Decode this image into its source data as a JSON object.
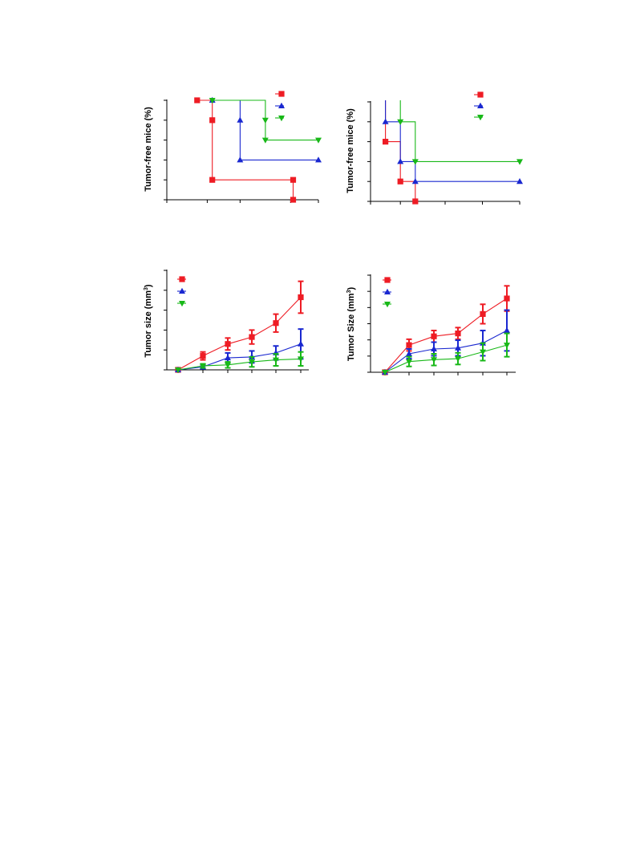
{
  "chart_data": [
    {
      "type": "line",
      "subtype": "kaplan-meier-step",
      "ylabel": "Tumor-free mice (%)",
      "xlabel": "",
      "xlim": [
        0,
        6
      ],
      "ylim": [
        0,
        100
      ],
      "legend_placement": "top-right",
      "series": [
        {
          "color": "#ee1c24",
          "marker": "square",
          "x": [
            1.2,
            1.8,
            1.8,
            5.0,
            5.0
          ],
          "y": [
            100,
            80,
            20,
            20,
            0
          ]
        },
        {
          "color": "#1a28d0",
          "marker": "triangle-up",
          "x": [
            1.8,
            2.9,
            2.9,
            6.0
          ],
          "y": [
            100,
            80,
            40,
            40
          ]
        },
        {
          "color": "#18b818",
          "marker": "triangle-down",
          "x": [
            1.8,
            3.9,
            3.9,
            6.0
          ],
          "y": [
            100,
            80,
            60,
            60
          ]
        }
      ]
    },
    {
      "type": "line",
      "subtype": "kaplan-meier-step",
      "ylabel": "Tumor-free mice (%)",
      "xlabel": "",
      "xlim": [
        0,
        6
      ],
      "ylim": [
        0,
        100
      ],
      "legend_placement": "top-right",
      "series": [
        {
          "color": "#ee1c24",
          "marker": "square",
          "x": [
            0.6,
            1.2,
            1.8
          ],
          "y": [
            60,
            20,
            0
          ]
        },
        {
          "color": "#1a28d0",
          "marker": "triangle-up",
          "x": [
            0.6,
            1.2,
            1.8,
            6.0
          ],
          "y": [
            80,
            40,
            20,
            20
          ]
        },
        {
          "color": "#18b818",
          "marker": "triangle-down",
          "x": [
            1.2,
            1.8,
            6.0
          ],
          "y": [
            80,
            40,
            40
          ]
        }
      ]
    },
    {
      "type": "line",
      "subtype": "error-bar",
      "ylabel": "Tumor size (mm",
      "ylabel_sup": "3",
      "ylabel_end": ")",
      "xlabel": "",
      "x": [
        0,
        1,
        2,
        3,
        4,
        5
      ],
      "ylim": [
        0,
        100
      ],
      "legend_placement": "top-left",
      "series": [
        {
          "color": "#ee1c24",
          "marker": "square",
          "values": [
            0,
            14,
            26,
            33,
            47,
            73
          ],
          "errors": [
            0,
            4,
            6,
            7,
            9,
            16
          ]
        },
        {
          "color": "#1a28d0",
          "marker": "triangle-up",
          "values": [
            0,
            3,
            12,
            13,
            17,
            26
          ],
          "errors": [
            0,
            2,
            5,
            6,
            7,
            15
          ]
        },
        {
          "color": "#18b818",
          "marker": "triangle-down",
          "values": [
            0,
            4,
            5,
            8,
            10,
            11
          ],
          "errors": [
            0,
            2,
            3,
            5,
            6,
            7
          ]
        }
      ]
    },
    {
      "type": "line",
      "subtype": "error-bar",
      "ylabel": "Tumor Size (mm",
      "ylabel_sup": "3",
      "ylabel_end": ")",
      "xlabel": "",
      "x": [
        0,
        1,
        2,
        3,
        4,
        5
      ],
      "ylim": [
        0,
        100
      ],
      "legend_placement": "top-left",
      "series": [
        {
          "color": "#ee1c24",
          "marker": "square",
          "values": [
            0,
            28,
            37,
            40,
            60,
            76
          ],
          "errors": [
            0,
            6,
            6,
            6,
            10,
            13
          ]
        },
        {
          "color": "#1a28d0",
          "marker": "triangle-up",
          "values": [
            0,
            19,
            24,
            25,
            30,
            43
          ],
          "errors": [
            0,
            5,
            7,
            8,
            13,
            21
          ]
        },
        {
          "color": "#18b818",
          "marker": "triangle-down",
          "values": [
            0,
            11,
            13,
            14,
            21,
            28
          ],
          "errors": [
            0,
            5,
            6,
            6,
            9,
            12
          ]
        }
      ]
    }
  ]
}
